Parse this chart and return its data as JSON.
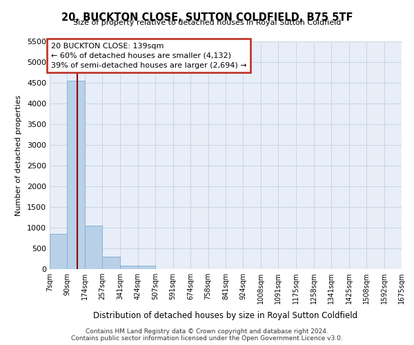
{
  "title": "20, BUCKTON CLOSE, SUTTON COLDFIELD, B75 5TF",
  "subtitle": "Size of property relative to detached houses in Royal Sutton Coldfield",
  "xlabel": "Distribution of detached houses by size in Royal Sutton Coldfield",
  "ylabel": "Number of detached properties",
  "annotation_title": "20 BUCKTON CLOSE: 139sqm",
  "annotation_line1": "← 60% of detached houses are smaller (4,132)",
  "annotation_line2": "39% of semi-detached houses are larger (2,694) →",
  "footer1": "Contains HM Land Registry data © Crown copyright and database right 2024.",
  "footer2": "Contains public sector information licensed under the Open Government Licence v3.0.",
  "property_size_sqm": 139,
  "bins": [
    7,
    90,
    174,
    257,
    341,
    424,
    507,
    591,
    674,
    758,
    841,
    924,
    1008,
    1091,
    1175,
    1258,
    1341,
    1425,
    1508,
    1592,
    1675
  ],
  "bin_labels": [
    "7sqm",
    "90sqm",
    "174sqm",
    "257sqm",
    "341sqm",
    "424sqm",
    "507sqm",
    "591sqm",
    "674sqm",
    "758sqm",
    "841sqm",
    "924sqm",
    "1008sqm",
    "1091sqm",
    "1175sqm",
    "1258sqm",
    "1341sqm",
    "1425sqm",
    "1508sqm",
    "1592sqm",
    "1675sqm"
  ],
  "counts": [
    850,
    4550,
    1050,
    300,
    80,
    80,
    0,
    0,
    0,
    0,
    0,
    0,
    0,
    0,
    0,
    0,
    0,
    0,
    0,
    0
  ],
  "bar_color": "#b8d0e8",
  "bar_edge_color": "#8ab0d0",
  "property_line_color": "#8b0000",
  "annotation_box_edge_color": "#c0392b",
  "grid_color": "#c8d4e4",
  "bg_color": "#e8eef8",
  "ylim": [
    0,
    5500
  ],
  "yticks": [
    0,
    500,
    1000,
    1500,
    2000,
    2500,
    3000,
    3500,
    4000,
    4500,
    5000,
    5500
  ]
}
